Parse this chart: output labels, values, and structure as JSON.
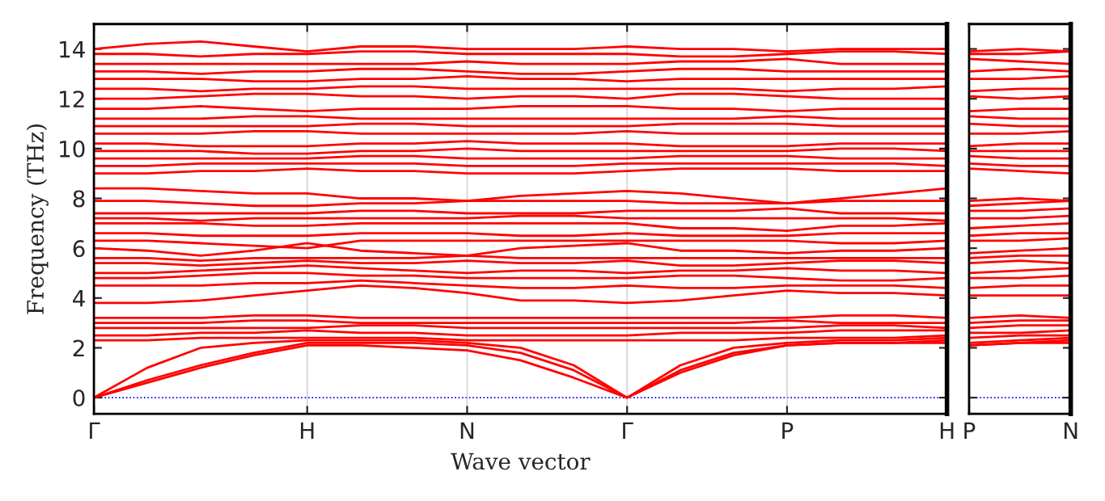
{
  "chart_data": [
    {
      "type": "line",
      "xlabel": "Wave vector",
      "ylabel": "Frequency (THz)",
      "grid": "x",
      "line_style": "solid",
      "marker": "none",
      "categories": [
        "Γ",
        null,
        null,
        null,
        "H",
        null,
        null,
        "N",
        null,
        null,
        "Γ",
        null,
        null,
        "P",
        null,
        null,
        "H"
      ],
      "ylim": [
        -0.65,
        15
      ],
      "yticks": [
        0,
        2,
        4,
        6,
        8,
        10,
        12,
        14
      ],
      "ref_lines": [
        {
          "axis": "y",
          "value": 0,
          "color": "#0000ff",
          "line_style": "dotted"
        }
      ],
      "series": [
        {
          "color": "#ff0000",
          "values": [
            0,
            0.6,
            1.2,
            1.7,
            2.1,
            2.1,
            2.0,
            1.9,
            1.5,
            0.8,
            0,
            1.0,
            1.7,
            2.1,
            2.2,
            2.2,
            2.2
          ]
        },
        {
          "color": "#ff0000",
          "values": [
            0,
            0.7,
            1.3,
            1.8,
            2.2,
            2.2,
            2.2,
            2.1,
            1.8,
            1.1,
            0,
            1.1,
            1.8,
            2.1,
            2.2,
            2.2,
            2.3
          ]
        },
        {
          "color": "#ff0000",
          "values": [
            0,
            1.2,
            2.0,
            2.2,
            2.3,
            2.3,
            2.3,
            2.2,
            2.0,
            1.3,
            0,
            1.3,
            2.0,
            2.2,
            2.3,
            2.3,
            2.4
          ]
        },
        {
          "color": "#ff0000",
          "values": [
            2.3,
            2.3,
            2.4,
            2.4,
            2.4,
            2.4,
            2.4,
            2.3,
            2.3,
            2.3,
            2.3,
            2.3,
            2.3,
            2.4,
            2.4,
            2.4,
            2.5
          ]
        },
        {
          "color": "#ff0000",
          "values": [
            2.5,
            2.5,
            2.6,
            2.6,
            2.7,
            2.6,
            2.6,
            2.5,
            2.5,
            2.5,
            2.5,
            2.6,
            2.6,
            2.6,
            2.7,
            2.7,
            2.7
          ]
        },
        {
          "color": "#ff0000",
          "values": [
            2.8,
            2.8,
            2.8,
            2.8,
            2.8,
            2.9,
            2.9,
            2.8,
            2.8,
            2.8,
            2.8,
            2.8,
            2.8,
            2.8,
            2.9,
            2.9,
            2.8
          ]
        },
        {
          "color": "#ff0000",
          "values": [
            3.0,
            3.0,
            3.0,
            3.1,
            3.1,
            3.0,
            3.0,
            3.0,
            3.0,
            3.0,
            3.0,
            3.0,
            3.0,
            3.1,
            3.0,
            3.0,
            3.0
          ]
        },
        {
          "color": "#ff0000",
          "values": [
            3.2,
            3.2,
            3.2,
            3.3,
            3.3,
            3.2,
            3.2,
            3.2,
            3.2,
            3.2,
            3.2,
            3.2,
            3.2,
            3.2,
            3.3,
            3.3,
            3.2
          ]
        },
        {
          "color": "#ff0000",
          "values": [
            3.8,
            3.8,
            3.9,
            4.1,
            4.3,
            4.5,
            4.4,
            4.2,
            3.9,
            3.9,
            3.8,
            3.9,
            4.1,
            4.3,
            4.2,
            4.2,
            4.1
          ]
        },
        {
          "color": "#ff0000",
          "values": [
            4.5,
            4.5,
            4.5,
            4.6,
            4.6,
            4.7,
            4.6,
            4.5,
            4.4,
            4.4,
            4.5,
            4.4,
            4.4,
            4.5,
            4.5,
            4.5,
            4.4
          ]
        },
        {
          "color": "#ff0000",
          "values": [
            4.8,
            4.8,
            4.9,
            5.0,
            5.0,
            4.9,
            4.9,
            4.8,
            4.8,
            4.8,
            4.8,
            4.9,
            4.9,
            4.8,
            4.7,
            4.7,
            4.8
          ]
        },
        {
          "color": "#ff0000",
          "values": [
            5.0,
            5.0,
            5.1,
            5.2,
            5.3,
            5.2,
            5.1,
            5.0,
            5.1,
            5.1,
            5.0,
            5.1,
            5.1,
            5.2,
            5.1,
            5.1,
            5.0
          ]
        },
        {
          "color": "#ff0000",
          "values": [
            5.4,
            5.4,
            5.3,
            5.4,
            5.5,
            5.4,
            5.4,
            5.5,
            5.4,
            5.4,
            5.5,
            5.3,
            5.3,
            5.4,
            5.5,
            5.5,
            5.4
          ]
        },
        {
          "color": "#ff0000",
          "values": [
            5.6,
            5.6,
            5.5,
            5.6,
            5.6,
            5.6,
            5.6,
            5.7,
            5.6,
            5.6,
            5.6,
            5.6,
            5.6,
            5.6,
            5.6,
            5.6,
            5.6
          ]
        },
        {
          "color": "#ff0000",
          "values": [
            6.0,
            5.9,
            5.7,
            5.9,
            6.2,
            5.9,
            5.8,
            5.7,
            6.0,
            6.1,
            6.2,
            5.9,
            5.9,
            5.8,
            5.9,
            5.9,
            6.0
          ]
        },
        {
          "color": "#ff0000",
          "values": [
            6.3,
            6.3,
            6.2,
            6.1,
            6.0,
            6.3,
            6.3,
            6.3,
            6.3,
            6.3,
            6.3,
            6.3,
            6.3,
            6.3,
            6.2,
            6.2,
            6.3
          ]
        },
        {
          "color": "#ff0000",
          "values": [
            6.6,
            6.6,
            6.5,
            6.5,
            6.5,
            6.6,
            6.6,
            6.6,
            6.5,
            6.5,
            6.6,
            6.5,
            6.5,
            6.5,
            6.6,
            6.6,
            6.6
          ]
        },
        {
          "color": "#ff0000",
          "values": [
            7.0,
            7.0,
            7.0,
            6.9,
            6.9,
            7.0,
            7.0,
            7.0,
            7.0,
            7.0,
            7.0,
            6.8,
            6.8,
            6.7,
            6.9,
            6.9,
            7.0
          ]
        },
        {
          "color": "#ff0000",
          "values": [
            7.2,
            7.2,
            7.1,
            7.2,
            7.2,
            7.2,
            7.2,
            7.2,
            7.3,
            7.3,
            7.2,
            7.2,
            7.2,
            7.2,
            7.2,
            7.2,
            7.1
          ]
        },
        {
          "color": "#ff0000",
          "values": [
            7.4,
            7.4,
            7.4,
            7.4,
            7.4,
            7.5,
            7.5,
            7.4,
            7.4,
            7.4,
            7.5,
            7.5,
            7.5,
            7.6,
            7.4,
            7.4,
            7.4
          ]
        },
        {
          "color": "#ff0000",
          "values": [
            7.9,
            7.9,
            7.8,
            7.7,
            7.7,
            7.8,
            7.8,
            7.9,
            7.9,
            7.9,
            7.9,
            7.8,
            7.8,
            7.8,
            7.9,
            7.9,
            7.9
          ]
        },
        {
          "color": "#ff0000",
          "values": [
            8.4,
            8.4,
            8.3,
            8.2,
            8.2,
            8.0,
            8.0,
            7.9,
            8.1,
            8.2,
            8.3,
            8.2,
            8.0,
            7.8,
            8.0,
            8.2,
            8.4
          ]
        },
        {
          "color": "#ff0000",
          "values": [
            9.0,
            9.0,
            9.1,
            9.1,
            9.2,
            9.1,
            9.1,
            9.0,
            9.0,
            9.0,
            9.1,
            9.2,
            9.2,
            9.2,
            9.1,
            9.1,
            9.1
          ]
        },
        {
          "color": "#ff0000",
          "values": [
            9.3,
            9.3,
            9.4,
            9.4,
            9.4,
            9.4,
            9.4,
            9.3,
            9.3,
            9.3,
            9.4,
            9.4,
            9.4,
            9.4,
            9.4,
            9.4,
            9.3
          ]
        },
        {
          "color": "#ff0000",
          "values": [
            9.6,
            9.6,
            9.6,
            9.6,
            9.6,
            9.7,
            9.7,
            9.6,
            9.6,
            9.6,
            9.6,
            9.7,
            9.7,
            9.7,
            9.6,
            9.6,
            9.6
          ]
        },
        {
          "color": "#ff0000",
          "values": [
            9.9,
            9.9,
            9.9,
            9.8,
            9.8,
            9.9,
            9.9,
            10.0,
            9.9,
            9.9,
            9.9,
            9.9,
            9.9,
            9.9,
            10.0,
            10.0,
            9.9
          ]
        },
        {
          "color": "#ff0000",
          "values": [
            10.2,
            10.2,
            10.1,
            10.1,
            10.1,
            10.2,
            10.2,
            10.3,
            10.2,
            10.2,
            10.2,
            10.1,
            10.1,
            10.1,
            10.2,
            10.2,
            10.2
          ]
        },
        {
          "color": "#ff0000",
          "values": [
            10.6,
            10.6,
            10.6,
            10.7,
            10.7,
            10.6,
            10.6,
            10.6,
            10.6,
            10.6,
            10.7,
            10.6,
            10.6,
            10.6,
            10.6,
            10.6,
            10.6
          ]
        },
        {
          "color": "#ff0000",
          "values": [
            10.9,
            10.9,
            10.9,
            10.9,
            10.9,
            11.0,
            11.0,
            10.9,
            10.9,
            10.9,
            10.9,
            11.0,
            11.0,
            11.0,
            10.9,
            10.9,
            10.9
          ]
        },
        {
          "color": "#ff0000",
          "values": [
            11.2,
            11.2,
            11.2,
            11.3,
            11.3,
            11.2,
            11.2,
            11.2,
            11.2,
            11.2,
            11.2,
            11.2,
            11.2,
            11.3,
            11.2,
            11.2,
            11.2
          ]
        },
        {
          "color": "#ff0000",
          "values": [
            11.6,
            11.6,
            11.7,
            11.6,
            11.5,
            11.6,
            11.6,
            11.6,
            11.7,
            11.7,
            11.7,
            11.6,
            11.6,
            11.5,
            11.6,
            11.6,
            11.6
          ]
        },
        {
          "color": "#ff0000",
          "values": [
            12.0,
            12.0,
            12.1,
            12.2,
            12.2,
            12.1,
            12.1,
            12.0,
            12.1,
            12.1,
            12.0,
            12.2,
            12.2,
            12.1,
            12.0,
            12.0,
            12.0
          ]
        },
        {
          "color": "#ff0000",
          "values": [
            12.4,
            12.4,
            12.3,
            12.4,
            12.4,
            12.5,
            12.5,
            12.4,
            12.4,
            12.4,
            12.4,
            12.4,
            12.4,
            12.3,
            12.4,
            12.4,
            12.5
          ]
        },
        {
          "color": "#ff0000",
          "values": [
            12.8,
            12.8,
            12.8,
            12.7,
            12.7,
            12.8,
            12.8,
            12.9,
            12.8,
            12.8,
            12.7,
            12.8,
            12.8,
            12.8,
            12.8,
            12.8,
            12.8
          ]
        },
        {
          "color": "#ff0000",
          "values": [
            13.1,
            13.1,
            13.0,
            13.1,
            13.1,
            13.2,
            13.2,
            13.1,
            13.0,
            13.0,
            13.1,
            13.2,
            13.2,
            13.1,
            13.1,
            13.1,
            13.1
          ]
        },
        {
          "color": "#ff0000",
          "values": [
            13.4,
            13.4,
            13.4,
            13.4,
            13.4,
            13.4,
            13.4,
            13.5,
            13.4,
            13.4,
            13.4,
            13.5,
            13.5,
            13.6,
            13.4,
            13.4,
            13.4
          ]
        },
        {
          "color": "#ff0000",
          "values": [
            13.8,
            13.8,
            13.7,
            13.8,
            13.8,
            13.9,
            13.9,
            13.8,
            13.8,
            13.8,
            13.8,
            13.7,
            13.7,
            13.8,
            13.9,
            13.9,
            13.8
          ]
        },
        {
          "color": "#ff0000",
          "values": [
            14.0,
            14.2,
            14.3,
            14.1,
            13.9,
            14.1,
            14.1,
            14.0,
            14.0,
            14.0,
            14.1,
            14.0,
            14.0,
            13.9,
            14.0,
            14.0,
            14.0
          ]
        }
      ]
    },
    {
      "type": "line",
      "line_style": "solid",
      "marker": "none",
      "tick_labels": "x",
      "categories": [
        "P",
        null,
        "N"
      ],
      "ylim": [
        -0.65,
        15
      ],
      "yticks": [
        0,
        2,
        4,
        6,
        8,
        10,
        12,
        14
      ],
      "ref_lines": [
        {
          "axis": "y",
          "value": 0,
          "color": "#0000ff",
          "line_style": "dotted"
        }
      ],
      "series": [
        {
          "color": "#ff0000",
          "values": [
            2.1,
            2.2,
            2.2
          ]
        },
        {
          "color": "#ff0000",
          "values": [
            2.1,
            2.2,
            2.3
          ]
        },
        {
          "color": "#ff0000",
          "values": [
            2.2,
            2.3,
            2.4
          ]
        },
        {
          "color": "#ff0000",
          "values": [
            2.4,
            2.5,
            2.5
          ]
        },
        {
          "color": "#ff0000",
          "values": [
            2.6,
            2.6,
            2.7
          ]
        },
        {
          "color": "#ff0000",
          "values": [
            2.8,
            2.9,
            2.9
          ]
        },
        {
          "color": "#ff0000",
          "values": [
            3.0,
            3.1,
            3.1
          ]
        },
        {
          "color": "#ff0000",
          "values": [
            3.2,
            3.3,
            3.2
          ]
        },
        {
          "color": "#ff0000",
          "values": [
            4.1,
            4.1,
            4.1
          ]
        },
        {
          "color": "#ff0000",
          "values": [
            4.4,
            4.5,
            4.5
          ]
        },
        {
          "color": "#ff0000",
          "values": [
            4.8,
            4.8,
            4.9
          ]
        },
        {
          "color": "#ff0000",
          "values": [
            5.0,
            5.1,
            5.2
          ]
        },
        {
          "color": "#ff0000",
          "values": [
            5.4,
            5.5,
            5.4
          ]
        },
        {
          "color": "#ff0000",
          "values": [
            5.6,
            5.7,
            5.7
          ]
        },
        {
          "color": "#ff0000",
          "values": [
            5.8,
            5.9,
            6.0
          ]
        },
        {
          "color": "#ff0000",
          "values": [
            6.3,
            6.3,
            6.4
          ]
        },
        {
          "color": "#ff0000",
          "values": [
            6.5,
            6.6,
            6.6
          ]
        },
        {
          "color": "#ff0000",
          "values": [
            6.8,
            6.9,
            7.0
          ]
        },
        {
          "color": "#ff0000",
          "values": [
            7.2,
            7.2,
            7.3
          ]
        },
        {
          "color": "#ff0000",
          "values": [
            7.5,
            7.5,
            7.6
          ]
        },
        {
          "color": "#ff0000",
          "values": [
            7.7,
            7.8,
            7.9
          ]
        },
        {
          "color": "#ff0000",
          "values": [
            7.9,
            8.0,
            7.9
          ]
        },
        {
          "color": "#ff0000",
          "values": [
            9.2,
            9.1,
            9.0
          ]
        },
        {
          "color": "#ff0000",
          "values": [
            9.4,
            9.3,
            9.3
          ]
        },
        {
          "color": "#ff0000",
          "values": [
            9.7,
            9.6,
            9.6
          ]
        },
        {
          "color": "#ff0000",
          "values": [
            9.9,
            9.9,
            9.9
          ]
        },
        {
          "color": "#ff0000",
          "values": [
            10.1,
            10.2,
            10.2
          ]
        },
        {
          "color": "#ff0000",
          "values": [
            10.6,
            10.6,
            10.7
          ]
        },
        {
          "color": "#ff0000",
          "values": [
            11.0,
            10.9,
            10.9
          ]
        },
        {
          "color": "#ff0000",
          "values": [
            11.3,
            11.2,
            11.2
          ]
        },
        {
          "color": "#ff0000",
          "values": [
            11.5,
            11.6,
            11.6
          ]
        },
        {
          "color": "#ff0000",
          "values": [
            12.1,
            12.0,
            12.1
          ]
        },
        {
          "color": "#ff0000",
          "values": [
            12.3,
            12.4,
            12.4
          ]
        },
        {
          "color": "#ff0000",
          "values": [
            12.8,
            12.8,
            12.9
          ]
        },
        {
          "color": "#ff0000",
          "values": [
            13.1,
            13.2,
            13.1
          ]
        },
        {
          "color": "#ff0000",
          "values": [
            13.6,
            13.5,
            13.4
          ]
        },
        {
          "color": "#ff0000",
          "values": [
            13.8,
            13.8,
            13.9
          ]
        },
        {
          "color": "#ff0000",
          "values": [
            13.9,
            14.0,
            13.9
          ]
        }
      ]
    }
  ]
}
